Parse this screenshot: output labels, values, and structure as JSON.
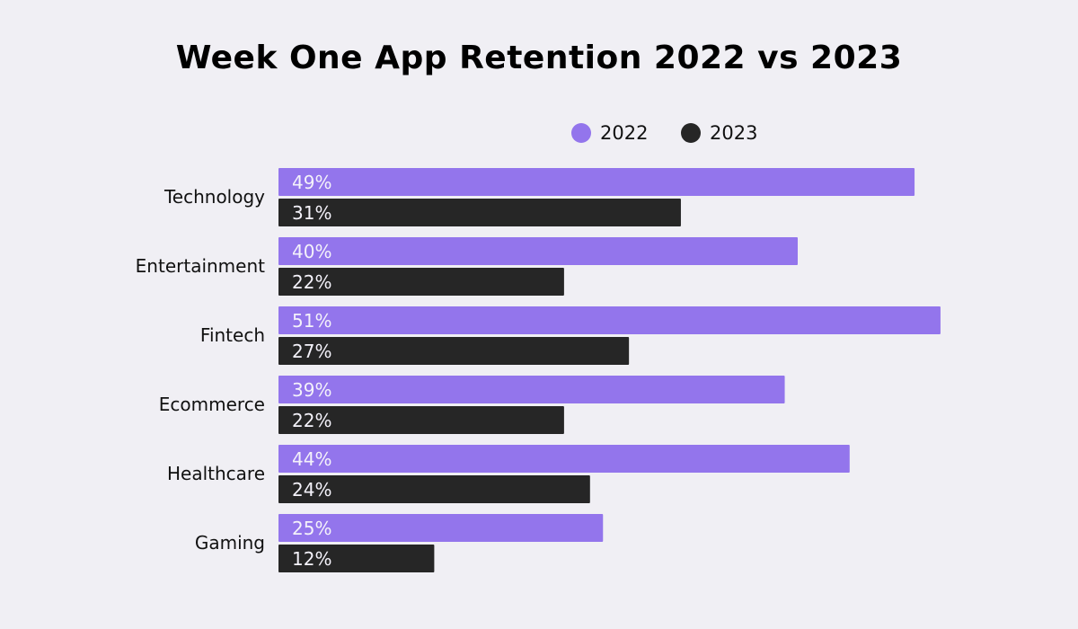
{
  "chart_data": {
    "type": "bar",
    "orientation": "horizontal",
    "title": "Week One App Retention 2022 vs 2023",
    "categories": [
      "Technology",
      "Entertainment",
      "Fintech",
      "Ecommerce",
      "Healthcare",
      "Gaming"
    ],
    "series": [
      {
        "name": "2022",
        "color": "#9375ec",
        "values": [
          49,
          40,
          51,
          39,
          44,
          25
        ],
        "labels": [
          "49%",
          "40%",
          "51%",
          "39%",
          "44%",
          "25%"
        ]
      },
      {
        "name": "2023",
        "color": "#262626",
        "values": [
          31,
          22,
          27,
          22,
          24,
          12
        ],
        "labels": [
          "31%",
          "22%",
          "27%",
          "22%",
          "24%",
          "12%"
        ]
      }
    ],
    "unit": "%",
    "legend_position": "top-right",
    "grid": false,
    "background": "#f0eff4"
  }
}
